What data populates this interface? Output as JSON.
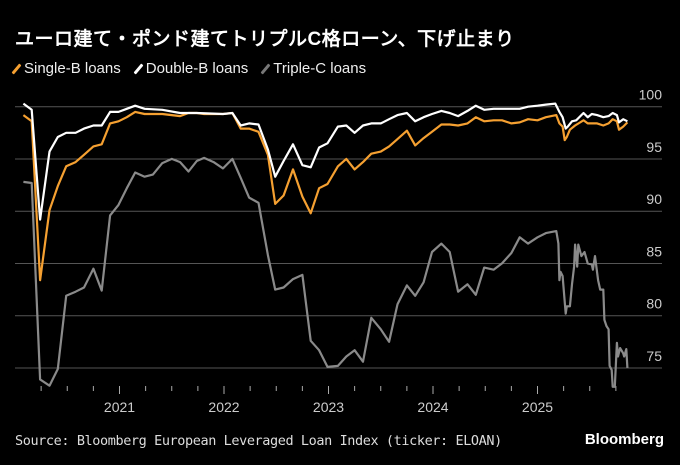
{
  "title": "ユーロ建て・ポンド建てトリプルC格ローン、下げ止まり",
  "source": "Source: Bloomberg European Leveraged Loan Index (ticker: ELOAN)",
  "brand": "Bloomberg",
  "chart_data": {
    "type": "line",
    "title": "ユーロ建て・ポンド建てトリプルC格ローン、下げ止まり",
    "xlabel": "",
    "ylabel": "",
    "xlim": [
      2020.0,
      2025.95
    ],
    "ylim": [
      73,
      101
    ],
    "y_ticks": [
      75,
      80,
      85,
      90,
      95,
      100
    ],
    "x_ticks": [
      2021,
      2022,
      2023,
      2024,
      2025
    ],
    "grid": true,
    "legend_position": "top-left",
    "series": [
      {
        "name": "Single-B loans",
        "color": "#f5a031",
        "points": [
          [
            2020.08,
            99.2
          ],
          [
            2020.16,
            98.6
          ],
          [
            2020.24,
            83.4
          ],
          [
            2020.33,
            90.1
          ],
          [
            2020.41,
            92.4
          ],
          [
            2020.49,
            94.3
          ],
          [
            2020.58,
            94.7
          ],
          [
            2020.66,
            95.4
          ],
          [
            2020.75,
            96.2
          ],
          [
            2020.83,
            96.4
          ],
          [
            2020.91,
            98.4
          ],
          [
            2020.99,
            98.6
          ],
          [
            2021.07,
            99.0
          ],
          [
            2021.15,
            99.5
          ],
          [
            2021.24,
            99.3
          ],
          [
            2021.41,
            99.3
          ],
          [
            2021.58,
            99.1
          ],
          [
            2021.66,
            99.4
          ],
          [
            2021.74,
            99.4
          ],
          [
            2021.81,
            99.3
          ],
          [
            2021.99,
            99.3
          ],
          [
            2022.08,
            99.4
          ],
          [
            2022.16,
            97.9
          ],
          [
            2022.24,
            97.9
          ],
          [
            2022.33,
            97.6
          ],
          [
            2022.42,
            95.4
          ],
          [
            2022.49,
            90.7
          ],
          [
            2022.57,
            91.5
          ],
          [
            2022.66,
            94.0
          ],
          [
            2022.75,
            91.4
          ],
          [
            2022.83,
            89.8
          ],
          [
            2022.91,
            92.2
          ],
          [
            2022.99,
            92.6
          ],
          [
            2023.09,
            94.3
          ],
          [
            2023.17,
            95.0
          ],
          [
            2023.25,
            94.0
          ],
          [
            2023.33,
            94.7
          ],
          [
            2023.41,
            95.5
          ],
          [
            2023.5,
            95.7
          ],
          [
            2023.58,
            96.2
          ],
          [
            2023.66,
            96.9
          ],
          [
            2023.75,
            97.7
          ],
          [
            2023.83,
            96.3
          ],
          [
            2023.91,
            97.0
          ],
          [
            2023.99,
            97.6
          ],
          [
            2024.08,
            98.3
          ],
          [
            2024.16,
            98.3
          ],
          [
            2024.24,
            98.2
          ],
          [
            2024.33,
            98.4
          ],
          [
            2024.41,
            99.0
          ],
          [
            2024.49,
            98.6
          ],
          [
            2024.58,
            98.7
          ],
          [
            2024.66,
            98.7
          ],
          [
            2024.75,
            98.4
          ],
          [
            2024.83,
            98.5
          ],
          [
            2024.91,
            98.8
          ],
          [
            2025.0,
            98.7
          ],
          [
            2025.08,
            99.0
          ],
          [
            2025.18,
            99.2
          ],
          [
            2025.21,
            98.4
          ],
          [
            2025.24,
            98.1
          ],
          [
            2025.26,
            96.8
          ],
          [
            2025.28,
            97.1
          ],
          [
            2025.31,
            97.8
          ],
          [
            2025.36,
            98.2
          ],
          [
            2025.44,
            98.7
          ],
          [
            2025.48,
            98.4
          ],
          [
            2025.57,
            98.4
          ],
          [
            2025.63,
            98.2
          ],
          [
            2025.68,
            98.4
          ],
          [
            2025.72,
            98.8
          ],
          [
            2025.76,
            98.6
          ],
          [
            2025.78,
            97.8
          ],
          [
            2025.82,
            98.1
          ],
          [
            2025.86,
            98.5
          ]
        ]
      },
      {
        "name": "Double-B loans",
        "color": "#ffffff",
        "points": [
          [
            2020.08,
            100.3
          ],
          [
            2020.16,
            99.7
          ],
          [
            2020.24,
            89.2
          ],
          [
            2020.33,
            95.7
          ],
          [
            2020.41,
            97.1
          ],
          [
            2020.49,
            97.5
          ],
          [
            2020.58,
            97.5
          ],
          [
            2020.66,
            97.9
          ],
          [
            2020.75,
            98.2
          ],
          [
            2020.83,
            98.2
          ],
          [
            2020.91,
            99.5
          ],
          [
            2020.99,
            99.5
          ],
          [
            2021.07,
            99.8
          ],
          [
            2021.15,
            100.1
          ],
          [
            2021.24,
            99.8
          ],
          [
            2021.41,
            99.7
          ],
          [
            2021.58,
            99.4
          ],
          [
            2021.74,
            99.4
          ],
          [
            2021.99,
            99.3
          ],
          [
            2022.08,
            99.4
          ],
          [
            2022.16,
            98.2
          ],
          [
            2022.24,
            98.4
          ],
          [
            2022.33,
            98.3
          ],
          [
            2022.42,
            95.9
          ],
          [
            2022.49,
            93.3
          ],
          [
            2022.57,
            94.8
          ],
          [
            2022.66,
            96.4
          ],
          [
            2022.75,
            94.4
          ],
          [
            2022.83,
            94.2
          ],
          [
            2022.91,
            96.1
          ],
          [
            2022.99,
            96.5
          ],
          [
            2023.09,
            98.1
          ],
          [
            2023.17,
            98.2
          ],
          [
            2023.25,
            97.5
          ],
          [
            2023.33,
            98.2
          ],
          [
            2023.41,
            98.4
          ],
          [
            2023.5,
            98.4
          ],
          [
            2023.58,
            98.8
          ],
          [
            2023.66,
            99.2
          ],
          [
            2023.75,
            99.4
          ],
          [
            2023.83,
            98.6
          ],
          [
            2023.91,
            99.0
          ],
          [
            2023.99,
            99.3
          ],
          [
            2024.08,
            99.6
          ],
          [
            2024.16,
            99.4
          ],
          [
            2024.24,
            99.1
          ],
          [
            2024.33,
            99.6
          ],
          [
            2024.41,
            100.1
          ],
          [
            2024.49,
            99.7
          ],
          [
            2024.58,
            99.8
          ],
          [
            2024.83,
            99.8
          ],
          [
            2024.91,
            100.0
          ],
          [
            2025.0,
            100.1
          ],
          [
            2025.08,
            100.2
          ],
          [
            2025.17,
            100.3
          ],
          [
            2025.21,
            99.5
          ],
          [
            2025.24,
            99.0
          ],
          [
            2025.27,
            97.9
          ],
          [
            2025.29,
            98.1
          ],
          [
            2025.33,
            98.6
          ],
          [
            2025.37,
            98.7
          ],
          [
            2025.44,
            99.4
          ],
          [
            2025.48,
            99.0
          ],
          [
            2025.52,
            99.3
          ],
          [
            2025.57,
            99.2
          ],
          [
            2025.63,
            99.0
          ],
          [
            2025.68,
            99.1
          ],
          [
            2025.72,
            99.4
          ],
          [
            2025.76,
            99.2
          ],
          [
            2025.78,
            98.5
          ],
          [
            2025.82,
            98.8
          ],
          [
            2025.86,
            98.6
          ]
        ]
      },
      {
        "name": "Triple-C loans",
        "color": "#8a8a8a",
        "points": [
          [
            2020.08,
            92.8
          ],
          [
            2020.16,
            92.7
          ],
          [
            2020.24,
            73.9
          ],
          [
            2020.33,
            73.3
          ],
          [
            2020.41,
            74.9
          ],
          [
            2020.49,
            81.9
          ],
          [
            2020.58,
            82.3
          ],
          [
            2020.66,
            82.7
          ],
          [
            2020.75,
            84.5
          ],
          [
            2020.83,
            82.4
          ],
          [
            2020.91,
            89.6
          ],
          [
            2020.99,
            90.6
          ],
          [
            2021.07,
            92.2
          ],
          [
            2021.15,
            93.7
          ],
          [
            2021.24,
            93.3
          ],
          [
            2021.32,
            93.5
          ],
          [
            2021.41,
            94.6
          ],
          [
            2021.5,
            95.0
          ],
          [
            2021.58,
            94.7
          ],
          [
            2021.66,
            93.8
          ],
          [
            2021.74,
            94.8
          ],
          [
            2021.81,
            95.1
          ],
          [
            2021.9,
            94.7
          ],
          [
            2021.99,
            94.1
          ],
          [
            2022.08,
            95.0
          ],
          [
            2022.16,
            93.2
          ],
          [
            2022.24,
            91.3
          ],
          [
            2022.33,
            90.8
          ],
          [
            2022.42,
            85.8
          ],
          [
            2022.49,
            82.5
          ],
          [
            2022.57,
            82.7
          ],
          [
            2022.66,
            83.5
          ],
          [
            2022.75,
            83.9
          ],
          [
            2022.83,
            77.6
          ],
          [
            2022.91,
            76.7
          ],
          [
            2022.99,
            75.1
          ],
          [
            2023.09,
            75.2
          ],
          [
            2023.17,
            76.1
          ],
          [
            2023.25,
            76.7
          ],
          [
            2023.33,
            75.6
          ],
          [
            2023.41,
            79.8
          ],
          [
            2023.5,
            78.7
          ],
          [
            2023.58,
            77.5
          ],
          [
            2023.66,
            81.1
          ],
          [
            2023.75,
            82.9
          ],
          [
            2023.83,
            81.9
          ],
          [
            2023.91,
            83.2
          ],
          [
            2023.99,
            86.1
          ],
          [
            2024.08,
            86.9
          ],
          [
            2024.16,
            86.1
          ],
          [
            2024.24,
            82.3
          ],
          [
            2024.33,
            83.0
          ],
          [
            2024.41,
            82.0
          ],
          [
            2024.49,
            84.6
          ],
          [
            2024.58,
            84.4
          ],
          [
            2024.66,
            85.0
          ],
          [
            2024.75,
            86.0
          ],
          [
            2024.83,
            87.5
          ],
          [
            2024.91,
            86.9
          ],
          [
            2025.0,
            87.5
          ],
          [
            2025.08,
            87.9
          ],
          [
            2025.18,
            88.1
          ],
          [
            2025.2,
            86.9
          ],
          [
            2025.21,
            83.4
          ],
          [
            2025.22,
            84.2
          ],
          [
            2025.24,
            83.8
          ],
          [
            2025.27,
            80.2
          ],
          [
            2025.28,
            80.9
          ],
          [
            2025.31,
            80.9
          ],
          [
            2025.33,
            83.0
          ],
          [
            2025.35,
            84.7
          ],
          [
            2025.36,
            86.8
          ],
          [
            2025.38,
            84.7
          ],
          [
            2025.39,
            86.8
          ],
          [
            2025.42,
            85.7
          ],
          [
            2025.45,
            86.1
          ],
          [
            2025.48,
            85.0
          ],
          [
            2025.52,
            84.9
          ],
          [
            2025.53,
            84.4
          ],
          [
            2025.55,
            85.7
          ],
          [
            2025.58,
            83.4
          ],
          [
            2025.6,
            82.5
          ],
          [
            2025.63,
            82.5
          ],
          [
            2025.64,
            79.6
          ],
          [
            2025.66,
            79.0
          ],
          [
            2025.68,
            78.7
          ],
          [
            2025.69,
            75.2
          ],
          [
            2025.71,
            74.8
          ],
          [
            2025.72,
            73.2
          ],
          [
            2025.74,
            73.2
          ],
          [
            2025.76,
            77.4
          ],
          [
            2025.77,
            76.1
          ],
          [
            2025.79,
            76.9
          ],
          [
            2025.82,
            76.4
          ],
          [
            2025.83,
            76.1
          ],
          [
            2025.85,
            76.8
          ],
          [
            2025.86,
            75.0
          ]
        ]
      }
    ]
  }
}
